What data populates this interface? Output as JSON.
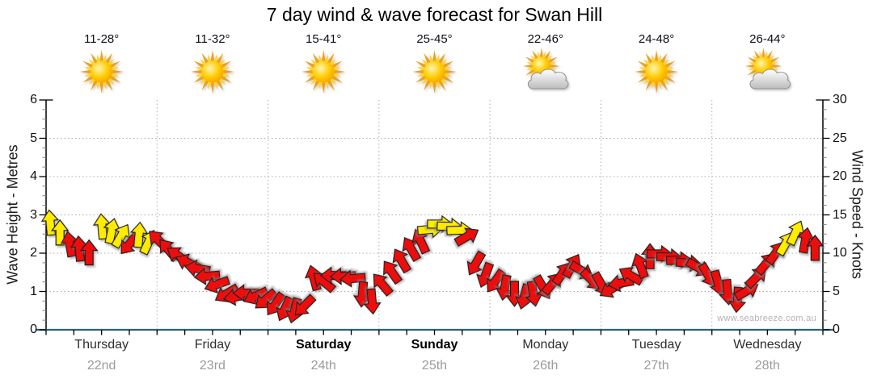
{
  "title": "7 day wind & wave forecast for Swan Hill",
  "watermark": "www.seabreeze.com.au",
  "days": [
    {
      "name": "Thursday",
      "date": "22nd",
      "temp": "11-28°",
      "icon": "sunny",
      "bold": false
    },
    {
      "name": "Friday",
      "date": "23rd",
      "temp": "11-32°",
      "icon": "sunny",
      "bold": false
    },
    {
      "name": "Saturday",
      "date": "24th",
      "temp": "15-41°",
      "icon": "sunny",
      "bold": true
    },
    {
      "name": "Sunday",
      "date": "25th",
      "temp": "25-45°",
      "icon": "sunny",
      "bold": true
    },
    {
      "name": "Monday",
      "date": "26th",
      "temp": "22-46°",
      "icon": "partly-cloudy",
      "bold": false
    },
    {
      "name": "Tuesday",
      "date": "27th",
      "temp": "24-48°",
      "icon": "sunny",
      "bold": false
    },
    {
      "name": "Wednesday",
      "date": "28th",
      "temp": "26-44°",
      "icon": "partly-cloudy",
      "bold": false
    }
  ],
  "left_axis": {
    "label": "Wave Height - Metres",
    "min": 0,
    "max": 6,
    "ticks": [
      0,
      1,
      2,
      3,
      4,
      5,
      6
    ],
    "minor_step": 0.25
  },
  "right_axis": {
    "label": "Wind Speed - Knots",
    "min": 0,
    "max": 30,
    "ticks": [
      0,
      5,
      10,
      15,
      20,
      25,
      30
    ],
    "minor_step": 1.25
  },
  "colors": {
    "arrow_red": "#EC1010",
    "arrow_yellow": "#FFEC00",
    "arrow_outline": "#1b1b1b",
    "axis_line_blue": "#2F607F",
    "axis_black": "#000000",
    "grid_gray": "#ABABAB",
    "minor_tick_gray": "#808080",
    "date_gray": "#9B9B9B",
    "watermark_gray": "#B3B3B3",
    "sun_orange": "#EDA21F",
    "sun_yellow": "#FFD329",
    "cloud_gray": "#BDBDBD"
  },
  "chart_data": {
    "type": "wind-vector-time-series",
    "x_range_hours": [
      0,
      168
    ],
    "x_days": [
      "Thursday 22nd",
      "Friday 23rd",
      "Saturday 24th",
      "Sunday 25th",
      "Monday 26th",
      "Tuesday 27th",
      "Wednesday 28th"
    ],
    "y_left_range_metres": [
      0,
      6
    ],
    "y_right_range_knots": [
      0,
      30
    ],
    "grid": "dotted horizontal at 1-5 m, dotted vertical at day boundaries",
    "arrow_columns": [
      "forecast_hour",
      "wind_speed_knots",
      "direction_deg_pointing_cw_from_up",
      "color Y=yellow R=red"
    ],
    "arrows": [
      [
        0.9,
        14.0,
        -5,
        "Y"
      ],
      [
        3.0,
        12.7,
        0,
        "Y"
      ],
      [
        5.1,
        11.2,
        -10,
        "R"
      ],
      [
        7.2,
        10.6,
        -5,
        "R"
      ],
      [
        9.3,
        10.1,
        0,
        "R"
      ],
      [
        12.1,
        13.5,
        -5,
        "Y"
      ],
      [
        14.2,
        12.9,
        12,
        "Y"
      ],
      [
        16.3,
        12.3,
        30,
        "Y"
      ],
      [
        18.0,
        11.2,
        -140,
        "R"
      ],
      [
        20.1,
        12.4,
        5,
        "Y"
      ],
      [
        22.2,
        11.5,
        25,
        "Y"
      ],
      [
        24.3,
        11.7,
        -45,
        "R"
      ],
      [
        26.4,
        10.5,
        -40,
        "R"
      ],
      [
        28.5,
        9.7,
        -55,
        "R"
      ],
      [
        30.6,
        8.8,
        -65,
        "R"
      ],
      [
        32.7,
        8.0,
        -80,
        "R"
      ],
      [
        34.8,
        7.0,
        -95,
        "R"
      ],
      [
        36.9,
        5.9,
        -110,
        "R"
      ],
      [
        39.0,
        4.7,
        -120,
        "R"
      ],
      [
        41.1,
        4.3,
        -100,
        "R"
      ],
      [
        43.2,
        4.8,
        -90,
        "R"
      ],
      [
        45.3,
        4.4,
        -115,
        "R"
      ],
      [
        47.4,
        3.9,
        -130,
        "R"
      ],
      [
        49.5,
        3.3,
        -145,
        "R"
      ],
      [
        51.6,
        2.7,
        -155,
        "R"
      ],
      [
        53.7,
        2.5,
        -165,
        "R"
      ],
      [
        55.8,
        3.1,
        -135,
        "R"
      ],
      [
        57.9,
        6.8,
        -15,
        "R"
      ],
      [
        60.0,
        6.3,
        -50,
        "R"
      ],
      [
        62.1,
        7.1,
        -90,
        "R"
      ],
      [
        64.2,
        7.0,
        -92,
        "R"
      ],
      [
        66.3,
        6.7,
        -95,
        "R"
      ],
      [
        68.4,
        4.6,
        -175,
        "R"
      ],
      [
        70.5,
        3.7,
        175,
        "R"
      ],
      [
        72.6,
        6.0,
        -40,
        "R"
      ],
      [
        74.7,
        7.6,
        -35,
        "R"
      ],
      [
        76.8,
        9.1,
        -30,
        "R"
      ],
      [
        78.9,
        10.6,
        -30,
        "R"
      ],
      [
        81.0,
        11.6,
        -25,
        "R"
      ],
      [
        83.1,
        13.1,
        85,
        "Y"
      ],
      [
        85.2,
        13.8,
        90,
        "Y"
      ],
      [
        87.3,
        13.5,
        92,
        "Y"
      ],
      [
        89.4,
        13.0,
        88,
        "Y"
      ],
      [
        91.1,
        12.2,
        60,
        "R"
      ],
      [
        92.9,
        8.6,
        -150,
        "R"
      ],
      [
        95.0,
        7.1,
        -160,
        "R"
      ],
      [
        97.1,
        6.3,
        -145,
        "R"
      ],
      [
        99.2,
        5.5,
        -170,
        "R"
      ],
      [
        101.3,
        4.7,
        180,
        "R"
      ],
      [
        103.4,
        4.3,
        -165,
        "R"
      ],
      [
        105.4,
        4.7,
        170,
        "R"
      ],
      [
        107.5,
        5.5,
        150,
        "R"
      ],
      [
        109.6,
        6.1,
        40,
        "R"
      ],
      [
        111.7,
        7.4,
        35,
        "R"
      ],
      [
        113.8,
        8.4,
        30,
        "R"
      ],
      [
        115.9,
        7.7,
        120,
        "R"
      ],
      [
        118.0,
        6.5,
        135,
        "R"
      ],
      [
        120.1,
        5.9,
        150,
        "R"
      ],
      [
        122.2,
        5.3,
        -120,
        "R"
      ],
      [
        124.3,
        6.1,
        -100,
        "R"
      ],
      [
        126.4,
        7.1,
        -60,
        "R"
      ],
      [
        128.5,
        8.4,
        -20,
        "R"
      ],
      [
        130.6,
        9.6,
        0,
        "R"
      ],
      [
        132.7,
        9.9,
        90,
        "R"
      ],
      [
        134.8,
        9.5,
        92,
        "R"
      ],
      [
        136.9,
        9.1,
        88,
        "R"
      ],
      [
        139.0,
        8.7,
        95,
        "R"
      ],
      [
        141.1,
        8.1,
        120,
        "R"
      ],
      [
        143.2,
        7.1,
        150,
        "R"
      ],
      [
        145.3,
        6.1,
        165,
        "R"
      ],
      [
        147.4,
        4.9,
        175,
        "R"
      ],
      [
        149.5,
        3.9,
        -175,
        "R"
      ],
      [
        151.6,
        5.1,
        60,
        "R"
      ],
      [
        153.7,
        6.9,
        45,
        "R"
      ],
      [
        155.8,
        8.7,
        40,
        "R"
      ],
      [
        157.9,
        10.1,
        35,
        "R"
      ],
      [
        160.0,
        11.3,
        30,
        "Y"
      ],
      [
        162.1,
        12.7,
        25,
        "Y"
      ],
      [
        164.2,
        11.7,
        10,
        "R"
      ],
      [
        166.3,
        10.7,
        0,
        "R"
      ]
    ]
  }
}
